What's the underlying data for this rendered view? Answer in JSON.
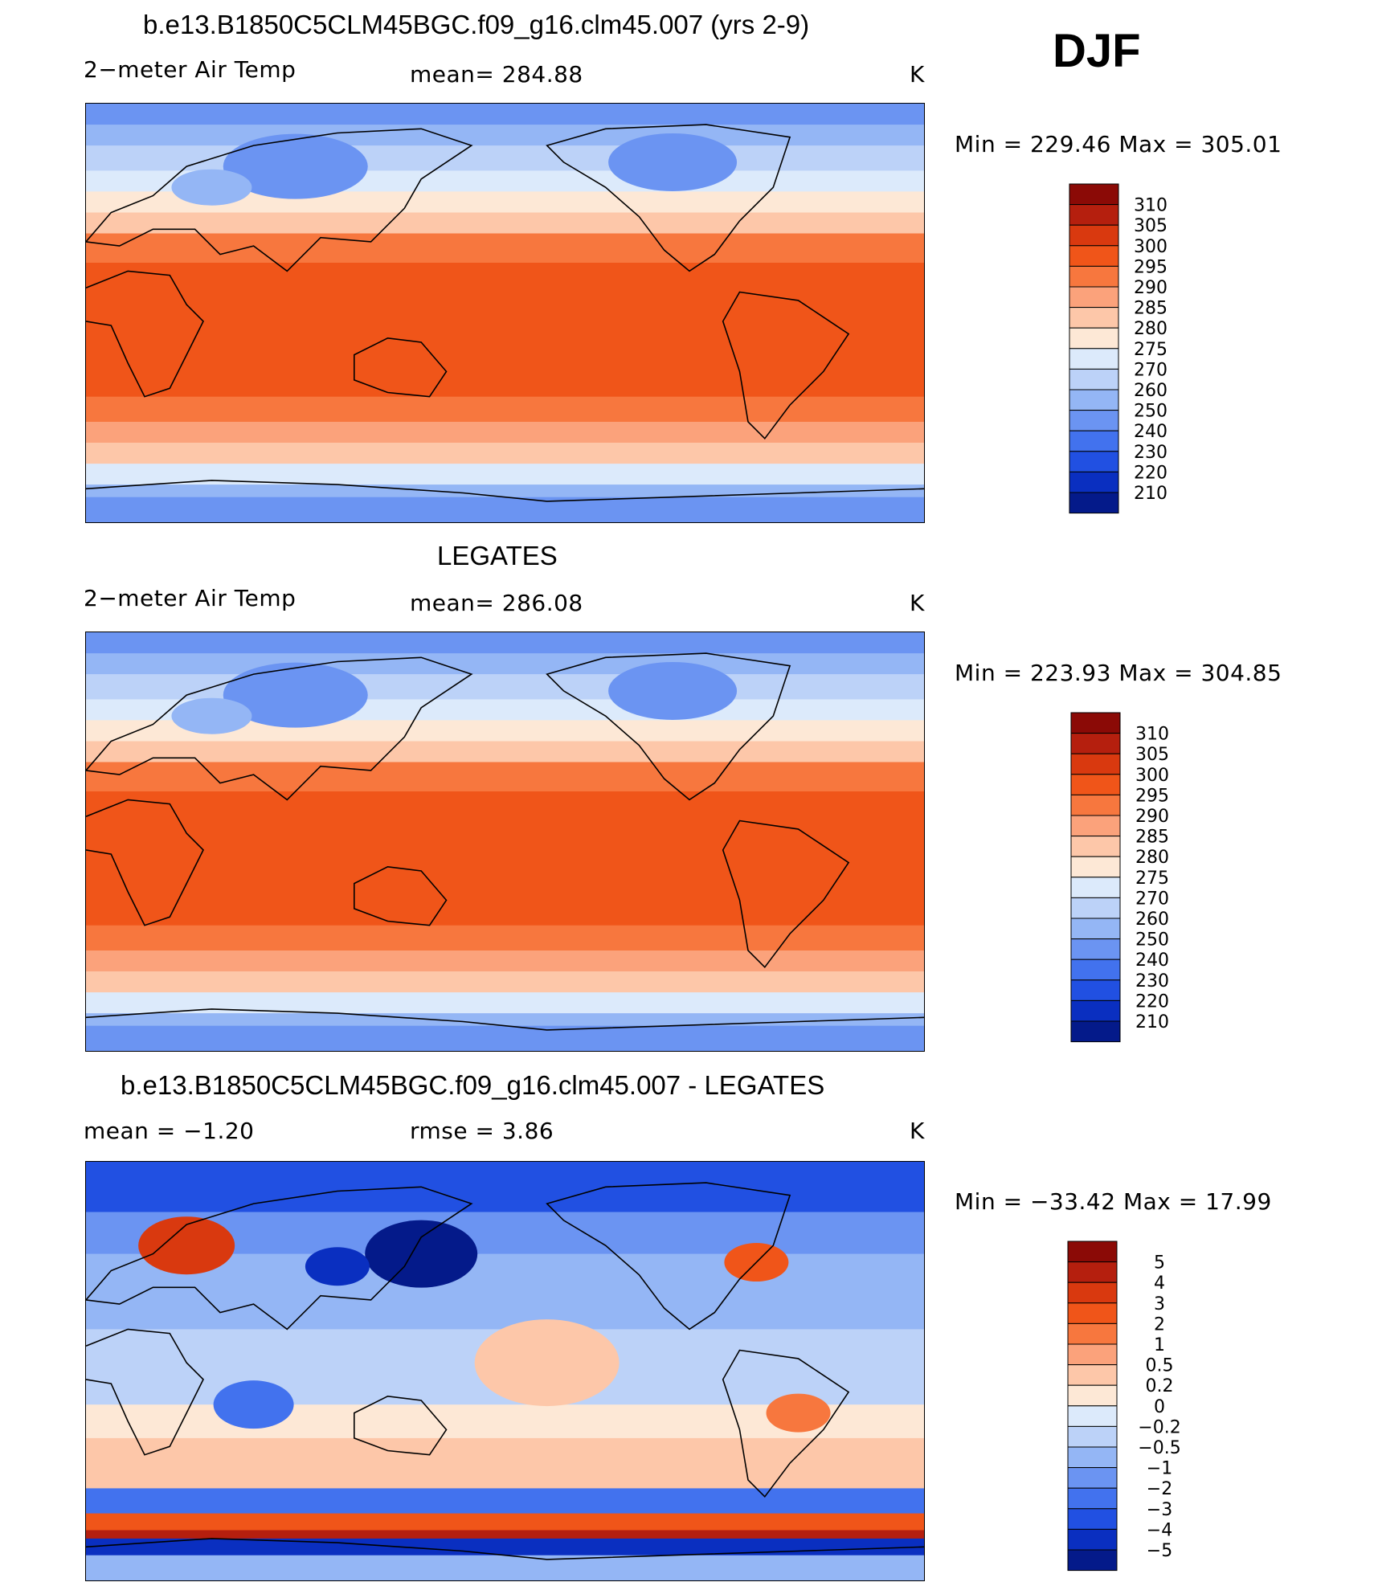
{
  "season": "DJF",
  "panels": [
    {
      "title": "b.e13.B1850C5CLM45BGC.f09_g16.clm45.007 (yrs 2-9)",
      "left_label": "2−meter Air Temp",
      "mid_label": "mean=  284.88",
      "units": "K",
      "minmax": "Min  =  229.46  Max  =  305.01"
    },
    {
      "title": "LEGATES",
      "left_label": "2−meter Air Temp",
      "mid_label": "mean=  286.08",
      "units": "K",
      "minmax": "Min  =  223.93  Max  =  304.85"
    },
    {
      "title": "b.e13.B1850C5CLM45BGC.f09_g16.clm45.007 - LEGATES",
      "left_label": "mean  =    −1.20",
      "mid_label": "rmse  =     3.86",
      "units": "K",
      "minmax": "Min  =  −33.42  Max  =    17.99"
    }
  ],
  "chart_data": [
    {
      "type": "heatmap",
      "title": "b.e13.B1850C5CLM45BGC.f09_g16.clm45.007 (yrs 2-9)",
      "variable": "2−meter Air Temp",
      "units": "K",
      "mean": 284.88,
      "min": 229.46,
      "max": 305.01,
      "colorbar_levels": [
        310,
        305,
        300,
        295,
        290,
        285,
        280,
        275,
        270,
        260,
        250,
        240,
        230,
        220,
        210
      ],
      "colorbar_colors": [
        "#8b0a06",
        "#b51f0e",
        "#d9390f",
        "#f05519",
        "#f7773e",
        "#fba27b",
        "#fdc7a9",
        "#fde8d6",
        "#dceafb",
        "#bcd2f8",
        "#94b6f5",
        "#6b94f2",
        "#4272ee",
        "#2150e2",
        "#0a2fc0",
        "#041a8a"
      ]
    },
    {
      "type": "heatmap",
      "title": "LEGATES",
      "variable": "2−meter Air Temp",
      "units": "K",
      "mean": 286.08,
      "min": 223.93,
      "max": 304.85,
      "colorbar_levels": [
        310,
        305,
        300,
        295,
        290,
        285,
        280,
        275,
        270,
        260,
        250,
        240,
        230,
        220,
        210
      ],
      "colorbar_colors": [
        "#8b0a06",
        "#b51f0e",
        "#d9390f",
        "#f05519",
        "#f7773e",
        "#fba27b",
        "#fdc7a9",
        "#fde8d6",
        "#dceafb",
        "#bcd2f8",
        "#94b6f5",
        "#6b94f2",
        "#4272ee",
        "#2150e2",
        "#0a2fc0",
        "#041a8a"
      ]
    },
    {
      "type": "heatmap",
      "title": "b.e13.B1850C5CLM45BGC.f09_g16.clm45.007 - LEGATES",
      "units": "K",
      "mean": -1.2,
      "rmse": 3.86,
      "min": -33.42,
      "max": 17.99,
      "colorbar_levels": [
        5,
        4,
        3,
        2,
        1,
        0.5,
        0.2,
        0,
        -0.2,
        -0.5,
        -1,
        -2,
        -3,
        -4,
        -5
      ],
      "colorbar_level_labels": [
        "5",
        "4",
        "3",
        "2",
        "1",
        "0.5",
        "0.2",
        "0",
        "−0.2",
        "−0.5",
        "−1",
        "−2",
        "−3",
        "−4",
        "−5"
      ],
      "colorbar_colors": [
        "#8b0a06",
        "#b51f0e",
        "#d9390f",
        "#f05519",
        "#f7773e",
        "#fba27b",
        "#fdc7a9",
        "#fde8d6",
        "#dceafb",
        "#bcd2f8",
        "#94b6f5",
        "#6b94f2",
        "#4272ee",
        "#2150e2",
        "#0a2fc0",
        "#041a8a"
      ]
    }
  ]
}
